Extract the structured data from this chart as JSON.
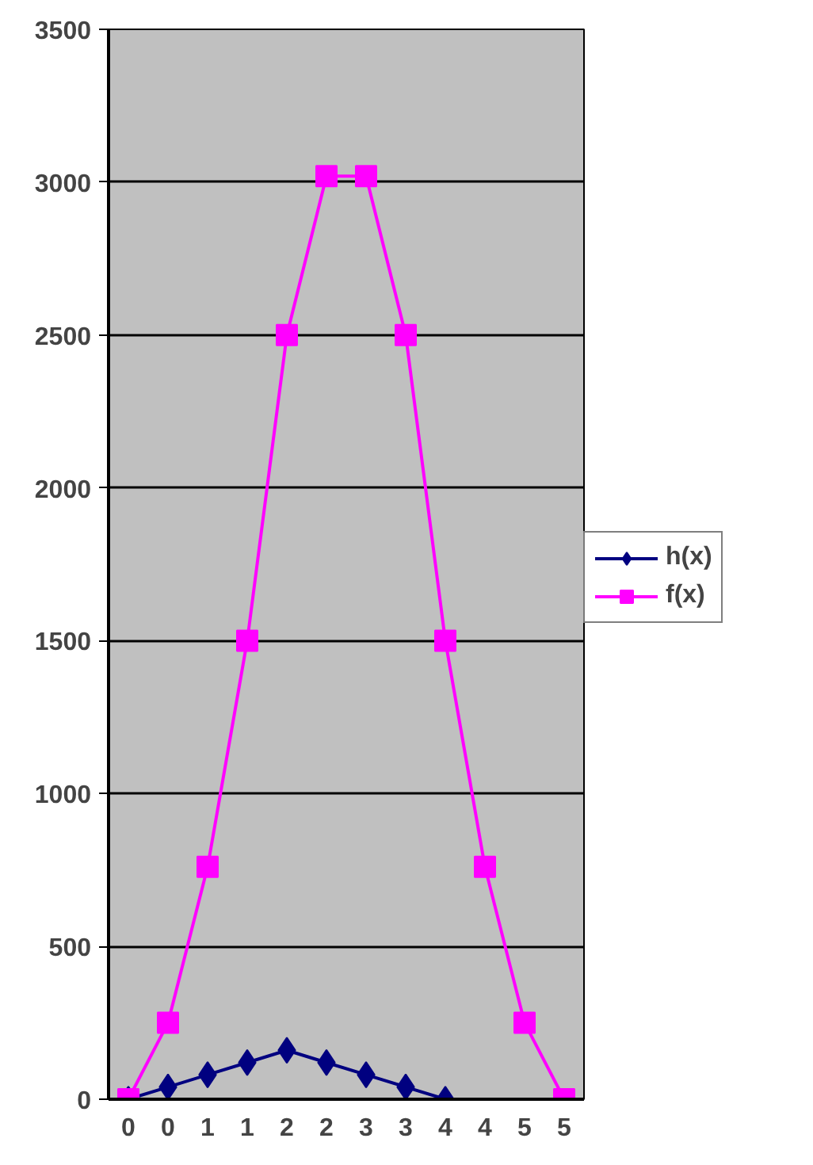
{
  "chart_data": {
    "type": "line",
    "categories": [
      "0",
      "0",
      "1",
      "1",
      "2",
      "2",
      "3",
      "3",
      "4",
      "4",
      "5",
      "5"
    ],
    "series": [
      {
        "name": "h(x)",
        "color": "#000080",
        "marker": "diamond",
        "values": [
          0,
          40,
          80,
          120,
          160,
          120,
          80,
          40,
          0,
          null,
          null,
          null
        ]
      },
      {
        "name": "f(x)",
        "color": "#ff00ff",
        "marker": "square",
        "values": [
          0,
          250,
          760,
          1500,
          2500,
          3020,
          3020,
          2500,
          1500,
          760,
          250,
          0
        ]
      }
    ],
    "ylim": [
      0,
      3500
    ],
    "yticks": [
      0,
      500,
      1000,
      1500,
      2000,
      2500,
      3000,
      3500
    ],
    "grid": "y",
    "legend": "right"
  }
}
